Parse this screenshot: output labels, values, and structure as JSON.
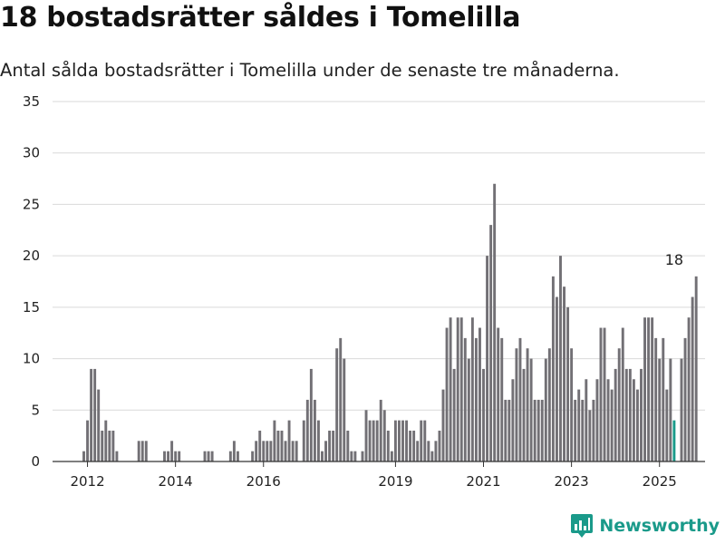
{
  "header": {
    "title": "18 bostadsrätter såldes i Tomelilla",
    "subtitle": "Antal sålda bostadsrätter i Tomelilla under de senaste tre månaderna."
  },
  "brand": {
    "name": "Newsworthy",
    "icon": "newsworthy-logo-icon",
    "color": "#1a9a8a"
  },
  "colors": {
    "bar": "#727075",
    "highlight": "#1a9a8a",
    "grid": "#d9d9d9",
    "axis": "#333333"
  },
  "chart_data": {
    "type": "bar",
    "title": "18 bostadsrätter såldes i Tomelilla",
    "xlabel": "",
    "ylabel": "",
    "ylim": [
      0,
      35
    ],
    "yticks": [
      "0",
      "5",
      "10",
      "15",
      "20",
      "25",
      "30",
      "35"
    ],
    "xticks": [
      "2012",
      "2014",
      "2016",
      "2019",
      "2021",
      "2023",
      "2025"
    ],
    "xtick_dates": [
      "2012-01",
      "2014-01",
      "2016-01",
      "2019-01",
      "2021-01",
      "2023-01",
      "2025-01"
    ],
    "grid": true,
    "legend": "none",
    "start": "2011-12",
    "values": [
      1,
      4,
      9,
      9,
      7,
      3,
      4,
      3,
      3,
      1,
      0,
      0,
      0,
      0,
      0,
      2,
      2,
      2,
      0,
      0,
      0,
      0,
      1,
      1,
      2,
      1,
      1,
      0,
      0,
      0,
      0,
      0,
      0,
      1,
      1,
      1,
      0,
      0,
      0,
      0,
      1,
      2,
      1,
      0,
      0,
      0,
      1,
      2,
      3,
      2,
      2,
      2,
      4,
      3,
      3,
      2,
      4,
      2,
      2,
      0,
      4,
      6,
      9,
      6,
      4,
      1,
      2,
      3,
      3,
      11,
      12,
      10,
      3,
      1,
      1,
      0,
      1,
      5,
      4,
      4,
      4,
      6,
      5,
      3,
      1,
      4,
      4,
      4,
      4,
      3,
      3,
      2,
      4,
      4,
      2,
      1,
      2,
      3,
      7,
      13,
      14,
      9,
      14,
      14,
      12,
      10,
      14,
      12,
      13,
      9,
      20,
      23,
      27,
      13,
      12,
      6,
      6,
      8,
      11,
      12,
      9,
      11,
      10,
      6,
      6,
      6,
      10,
      11,
      18,
      16,
      20,
      17,
      15,
      11,
      6,
      7,
      6,
      8,
      5,
      6,
      8,
      13,
      13,
      8,
      7,
      9,
      11,
      13,
      9,
      9,
      8,
      7,
      9,
      14,
      14,
      14,
      12,
      10,
      12,
      7,
      10,
      4,
      0,
      10,
      12,
      14,
      16,
      18
    ],
    "highlight": {
      "period": "2025-05",
      "value": 18,
      "label": "18"
    }
  }
}
